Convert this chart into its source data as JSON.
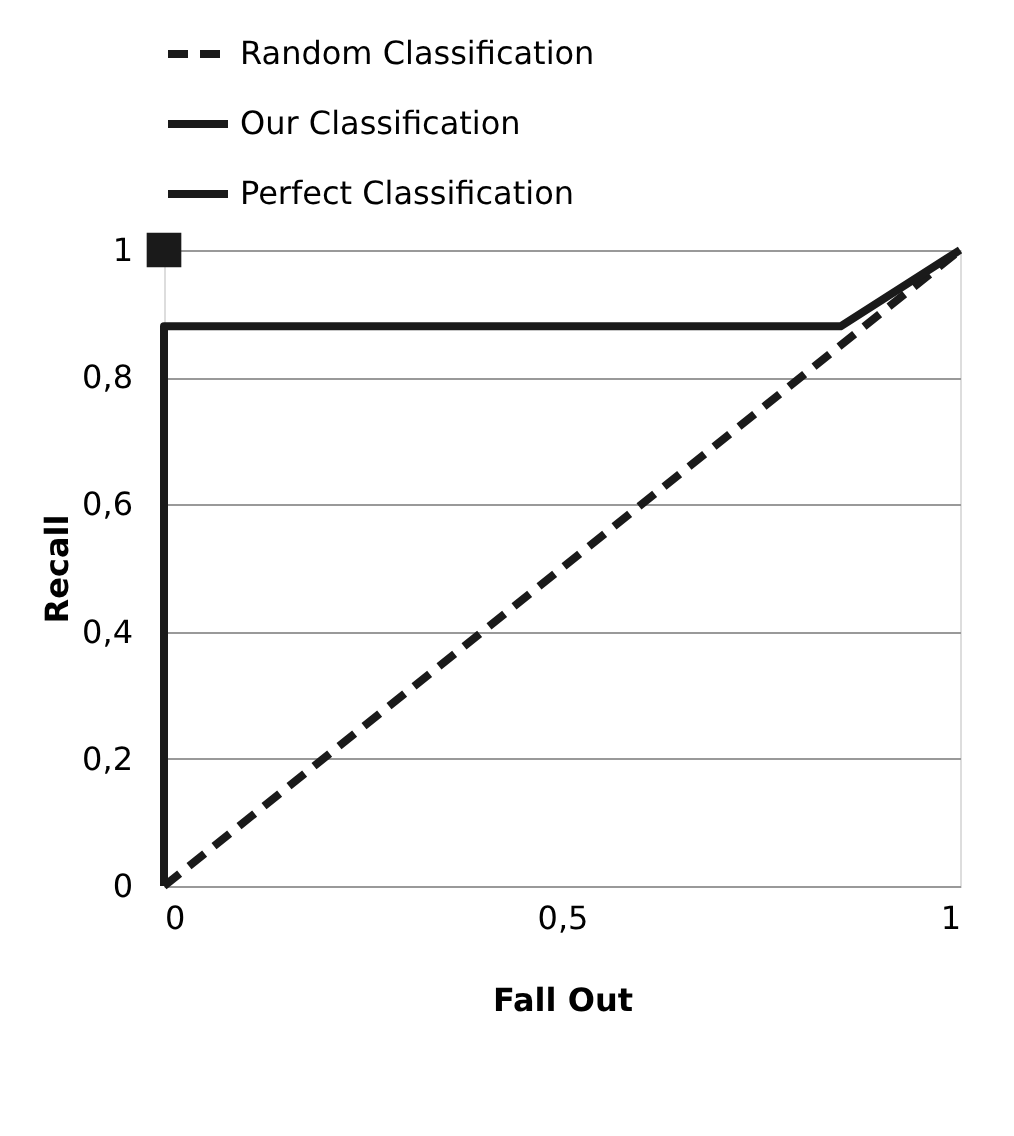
{
  "chart_data": {
    "type": "line",
    "xlabel": "Fall Out",
    "ylabel": "Recall",
    "series": [
      {
        "name": "Random Classification",
        "color": "#1a1a1a",
        "line_style": "dashed",
        "marker": "none",
        "x": [
          0,
          1
        ],
        "values": [
          0,
          1
        ]
      },
      {
        "name": "Our Classification",
        "color": "#1a1a1a",
        "line_style": "solid",
        "marker": "none",
        "x": [
          0,
          0,
          0.85,
          1
        ],
        "values": [
          0,
          0.88,
          0.88,
          1
        ]
      },
      {
        "name": "Perfect Classification",
        "color": "#1a1a1a",
        "line_style": "solid",
        "marker": "square",
        "x": [
          0
        ],
        "values": [
          1
        ]
      }
    ],
    "xlim": [
      0,
      1
    ],
    "ylim": [
      0,
      1
    ],
    "xticks": [
      0,
      {
        "value": 0.5,
        "label": "0,5"
      },
      1
    ],
    "yticks": [
      0,
      {
        "value": 0.2,
        "label": "0,2"
      },
      {
        "value": 0.4,
        "label": "0,4"
      },
      {
        "value": 0.6,
        "label": "0,6"
      },
      {
        "value": 0.8,
        "label": "0,8"
      },
      1
    ],
    "grid": "y",
    "legend": "top"
  }
}
